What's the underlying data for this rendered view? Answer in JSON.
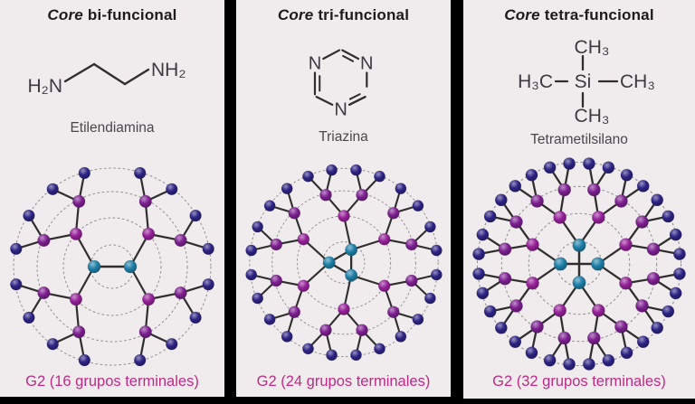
{
  "colors": {
    "page_background": "#000000",
    "panel_background": "#f0ebed",
    "title": "#1c1c1c",
    "molecule": "#3b3b41",
    "molecule_name": "#47474c",
    "caption": "#c02a85",
    "edge": "#2e2e2e",
    "ring": "#8f8f8f",
    "node_core": "#1d7fa7",
    "node_g1": "#952099",
    "node_g2": "#7d1f91",
    "node_terminal": "#2d2384"
  },
  "panels": [
    {
      "title": {
        "italic": "Core",
        "rest": " bi-funcional"
      },
      "molecule_name": "Etilendiamina",
      "caption": "G2 (16 grupos terminales)",
      "functionality": 2,
      "terminal_count": 16,
      "core_angles": [
        180,
        0
      ],
      "core_orbit": 20,
      "sector_span": 168,
      "molecule_type": "ethylenediamine",
      "molecule_labels": {
        "left": "H₂N",
        "right": "NH₂"
      }
    },
    {
      "title": {
        "italic": "Core",
        "rest": " tri-funcional"
      },
      "molecule_name": "Triazina",
      "caption": "G2 (24 grupos terminales)",
      "functionality": 3,
      "terminal_count": 24,
      "core_angles": [
        60,
        180,
        300
      ],
      "core_orbit": 17,
      "sector_span": 120,
      "molecule_type": "triazine",
      "molecule_labels": {
        "n1": "N",
        "n2": "N",
        "n3": "N"
      }
    },
    {
      "title": {
        "italic": "Core",
        "rest": " tetra-funcional"
      },
      "molecule_name": "Tetrametilsilano",
      "caption": "G2 (32 grupos terminales)",
      "functionality": 4,
      "terminal_count": 32,
      "core_angles": [
        90,
        0,
        270,
        180
      ],
      "core_orbit": 20,
      "sector_span": 90,
      "molecule_type": "tms",
      "molecule_labels": {
        "si": "Si",
        "top": "CH₃",
        "right": "CH₃",
        "bottom": "CH₃",
        "left": "H₃C"
      }
    }
  ],
  "dendrimer": {
    "generation_label": "G2",
    "ring_radii": [
      24,
      54,
      83,
      109
    ],
    "g1_radius": 54,
    "g2_radius": 81,
    "terminal_radius": 108,
    "branches_per_node": 2
  }
}
